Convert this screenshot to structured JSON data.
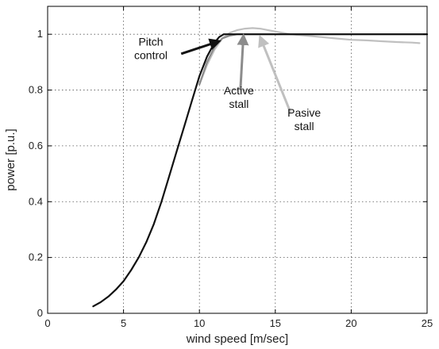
{
  "chart_data": {
    "type": "line",
    "title": "",
    "xlabel": "wind speed [m/sec]",
    "ylabel": "power [p.u.]",
    "xlim": [
      0,
      25
    ],
    "ylim": [
      0,
      1.1
    ],
    "xticks": [
      0,
      5,
      10,
      15,
      20,
      25
    ],
    "yticks": [
      0,
      0.2,
      0.4,
      0.6,
      0.8,
      1
    ],
    "xtick_labels": [
      "0",
      "5",
      "10",
      "15",
      "20",
      "25"
    ],
    "ytick_labels": [
      "0",
      "0.2",
      "0.4",
      "0.6",
      "0.8",
      "1"
    ],
    "grid": true,
    "series": [
      {
        "color": "#111111",
        "x": [
          3,
          3.5,
          4,
          4.5,
          5,
          5.5,
          6,
          6.5,
          7,
          7.5,
          8,
          8.5,
          9,
          9.5,
          10,
          10.5,
          11,
          11.3,
          11.6,
          12,
          13,
          15,
          20,
          25
        ],
        "y": [
          0.025,
          0.04,
          0.06,
          0.085,
          0.115,
          0.155,
          0.2,
          0.255,
          0.32,
          0.4,
          0.49,
          0.58,
          0.67,
          0.76,
          0.85,
          0.92,
          0.97,
          0.99,
          1.0,
          1.0,
          1.0,
          1.0,
          1.0,
          1.0
        ]
      },
      {
        "color": "#8c8c8c",
        "x": [
          10,
          10.5,
          11,
          11.5,
          12,
          12.5,
          13,
          13.5,
          14,
          15,
          20,
          25
        ],
        "y": [
          0.82,
          0.9,
          0.955,
          0.985,
          0.995,
          1.0,
          1.0,
          1.0,
          1.0,
          1.0,
          1.0,
          1.0
        ]
      },
      {
        "color": "#c0c0c0",
        "x": [
          10,
          10.5,
          11,
          11.5,
          12,
          12.5,
          13,
          13.5,
          14,
          14.5,
          15,
          16,
          17,
          18,
          19,
          20,
          21,
          22,
          23,
          24,
          24.5
        ],
        "y": [
          0.82,
          0.89,
          0.945,
          0.985,
          1.005,
          1.015,
          1.02,
          1.022,
          1.02,
          1.015,
          1.01,
          1.0,
          0.995,
          0.99,
          0.985,
          0.98,
          0.978,
          0.975,
          0.972,
          0.97,
          0.968
        ]
      }
    ],
    "annotations": [
      {
        "name": "pitch-control",
        "lines": [
          "Pitch",
          "control"
        ],
        "text_x": 6.8,
        "text_y": 0.96,
        "arrow_from": [
          8.8,
          0.93
        ],
        "arrow_to": [
          11.3,
          0.975
        ],
        "color": "#111111",
        "align": "middle"
      },
      {
        "name": "active-stall",
        "lines": [
          "Active",
          "stall"
        ],
        "text_x": 12.6,
        "text_y": 0.785,
        "arrow_from": [
          12.7,
          0.8
        ],
        "arrow_to": [
          12.9,
          0.995
        ],
        "color": "#8c8c8c",
        "align": "middle"
      },
      {
        "name": "passive-stall",
        "lines": [
          "Pasive",
          "stall"
        ],
        "text_x": 16.9,
        "text_y": 0.705,
        "arrow_from": [
          16.0,
          0.72
        ],
        "arrow_to": [
          14.0,
          0.99
        ],
        "color": "#c0c0c0",
        "align": "middle"
      }
    ]
  }
}
